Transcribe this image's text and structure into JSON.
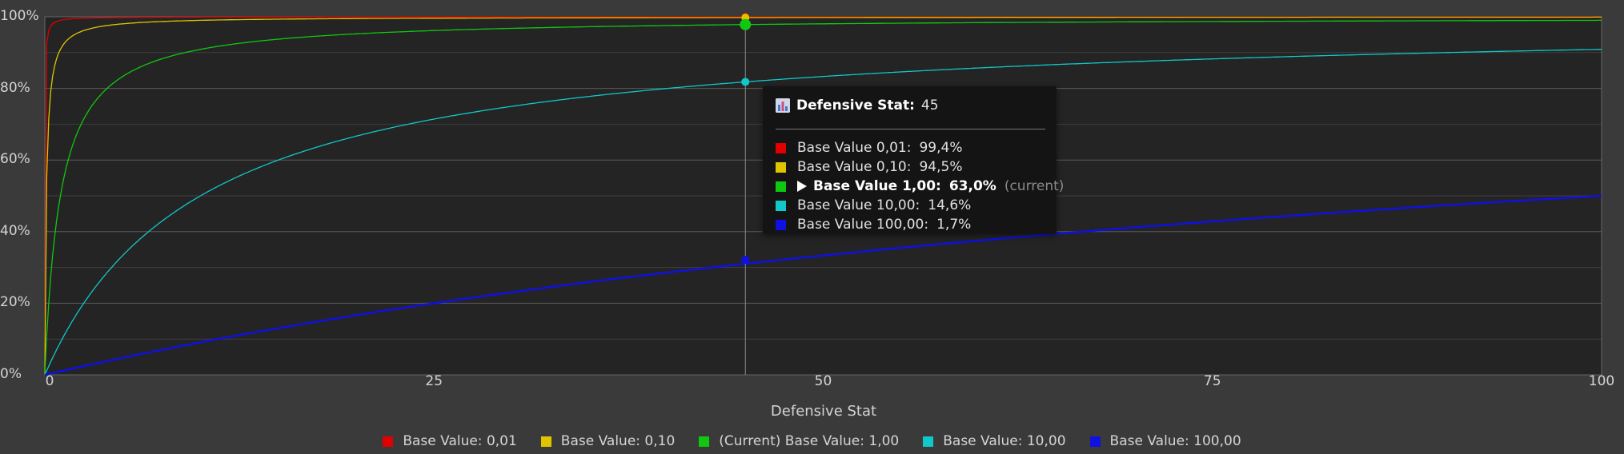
{
  "chart_data": {
    "type": "line",
    "title": "",
    "xlabel": "Defensive Stat",
    "ylabel": "",
    "xlim": [
      0,
      100
    ],
    "ylim": [
      0,
      100
    ],
    "x_ticks": [
      "0",
      "25",
      "50",
      "75",
      "100"
    ],
    "y_ticks": [
      "0%",
      "20%",
      "40%",
      "60%",
      "80%",
      "100%"
    ],
    "grid": true,
    "legend_position": "bottom",
    "series": [
      {
        "name": "Base Value: 0,01",
        "base": 0.01,
        "color": "#e00000"
      },
      {
        "name": "Base Value: 0,10",
        "base": 0.1,
        "color": "#e0c400"
      },
      {
        "name": "(Current) Base Value: 1,00",
        "base": 1.0,
        "color": "#10c810"
      },
      {
        "name": "Base Value: 10,00",
        "base": 10.0,
        "color": "#10c8c8"
      },
      {
        "name": "Base Value: 100,00",
        "base": 100.0,
        "color": "#1010e0"
      }
    ],
    "cursor_x": 45
  },
  "tooltip": {
    "stat_label": "Defensive Stat:",
    "stat_value": "45",
    "rows": [
      {
        "label": "Base Value 0,01:",
        "value": "99,4%",
        "color": "#e00000"
      },
      {
        "label": "Base Value 0,10:",
        "value": "94,5%",
        "color": "#e0c400"
      },
      {
        "label": "Base Value 1,00:",
        "value": "63,0%",
        "color": "#10c810",
        "current": true,
        "current_text": "(current)"
      },
      {
        "label": "Base Value 10,00:",
        "value": "14,6%",
        "color": "#10c8c8"
      },
      {
        "label": "Base Value 100,00:",
        "value": "1,7%",
        "color": "#1010e0"
      }
    ]
  }
}
